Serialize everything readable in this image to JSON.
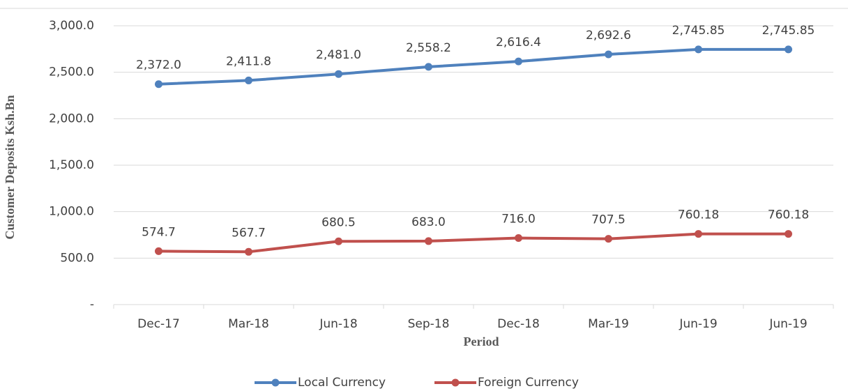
{
  "chart_data": {
    "type": "line",
    "y_label": "Customer Deposits Ksh.Bn",
    "x_label": "Period",
    "categories": [
      "Dec-17",
      "Mar-18",
      "Jun-18",
      "Sep-18",
      "Dec-18",
      "Mar-19",
      "Jun-19",
      "Jun-19"
    ],
    "series": [
      {
        "name": "Local Currency",
        "color": "#4f81bd",
        "values": [
          2372.0,
          2411.8,
          2481.0,
          2558.2,
          2616.4,
          2692.6,
          2745.85,
          2745.85
        ],
        "value_labels": [
          "2,372.0",
          "2,411.8",
          "2,481.0",
          "2,558.2",
          "2,616.4",
          "2,692.6",
          "2,745.85",
          "2,745.85"
        ]
      },
      {
        "name": "Foreign Currency",
        "color": "#c0504d",
        "values": [
          574.7,
          567.7,
          680.5,
          683.0,
          716.0,
          707.5,
          760.18,
          760.18
        ],
        "value_labels": [
          "574.7",
          "567.7",
          "680.5",
          "683.0",
          "716.0",
          "707.5",
          "760.18",
          "760.18"
        ]
      }
    ],
    "ylim": [
      0,
      3000
    ],
    "yticks": [
      {
        "value": 0,
        "label": "-"
      },
      {
        "value": 500,
        "label": "500.0"
      },
      {
        "value": 1000,
        "label": "1,000.0"
      },
      {
        "value": 1500,
        "label": "1,500.0"
      },
      {
        "value": 2000,
        "label": "2,000.0"
      },
      {
        "value": 2500,
        "label": "2,500.0"
      },
      {
        "value": 3000,
        "label": "3,000.0"
      }
    ],
    "grid": true,
    "legend": "bottom"
  }
}
